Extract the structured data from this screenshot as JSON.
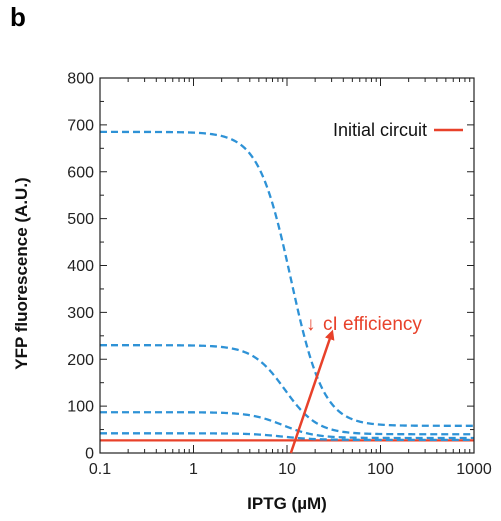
{
  "panel_label": "b",
  "chart_data": {
    "type": "line",
    "xlabel": "IPTG (µM)",
    "ylabel": "YFP fluorescence (A.U.)",
    "xscale": "log",
    "xlim": [
      0.1,
      1000
    ],
    "ylim": [
      0,
      800
    ],
    "x_ticks": [
      0.1,
      1,
      10,
      100,
      1000
    ],
    "x_tick_labels": [
      "0.1",
      "1",
      "10",
      "100",
      "1000"
    ],
    "y_ticks": [
      0,
      100,
      200,
      300,
      400,
      500,
      600,
      700,
      800
    ],
    "y_tick_labels": [
      "0",
      "100",
      "200",
      "300",
      "400",
      "500",
      "600",
      "700",
      "800"
    ],
    "grid": false,
    "legend": {
      "position": "top-right",
      "entries": [
        {
          "label": "Initial circuit",
          "color": "#e8412a",
          "style": "solid"
        }
      ]
    },
    "series": [
      {
        "name": "Initial circuit",
        "style": "solid",
        "color": "#e8412a",
        "max": 27,
        "min": 27,
        "k": 10,
        "n": 2.5
      },
      {
        "style": "dashed",
        "color": "#2e92d6",
        "max": 685,
        "min": 58,
        "k": 11,
        "n": 2.5
      },
      {
        "style": "dashed",
        "color": "#2e92d6",
        "max": 230,
        "min": 40,
        "k": 9.5,
        "n": 2.5
      },
      {
        "style": "dashed",
        "color": "#2e92d6",
        "max": 87,
        "min": 32,
        "k": 9,
        "n": 2.5
      },
      {
        "style": "dashed",
        "color": "#2e92d6",
        "max": 42,
        "min": 28,
        "k": 9,
        "n": 2.5
      }
    ],
    "annotations": [
      {
        "text": "cI efficiency",
        "color": "#e8412a",
        "prefix_symbol": "↓",
        "arrow_from": [
          11,
          0
        ],
        "arrow_to": [
          30,
          255
        ]
      }
    ]
  }
}
